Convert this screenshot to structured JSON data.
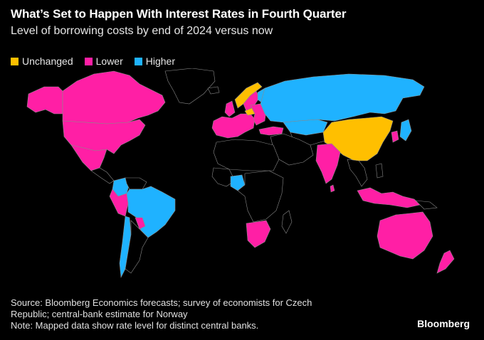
{
  "title": "What’s Set to Happen With Interest Rates in Fourth Quarter",
  "subtitle": "Level of borrowing costs by end of 2024 versus now",
  "legend": [
    {
      "label": "Unchanged",
      "color": "#ffbf00"
    },
    {
      "label": "Lower",
      "color": "#ff1fa5"
    },
    {
      "label": "Higher",
      "color": "#1fb2ff"
    }
  ],
  "colors": {
    "no_data": "#000000",
    "border": "#8a8a8a"
  },
  "footnote": {
    "line1": "Source: Bloomberg Economics forecasts; survey of economists for Czech",
    "line2": "Republic; central-bank estimate for Norway",
    "line3": "Note: Mapped data show rate level for distinct central banks."
  },
  "brand": "Bloomberg"
}
